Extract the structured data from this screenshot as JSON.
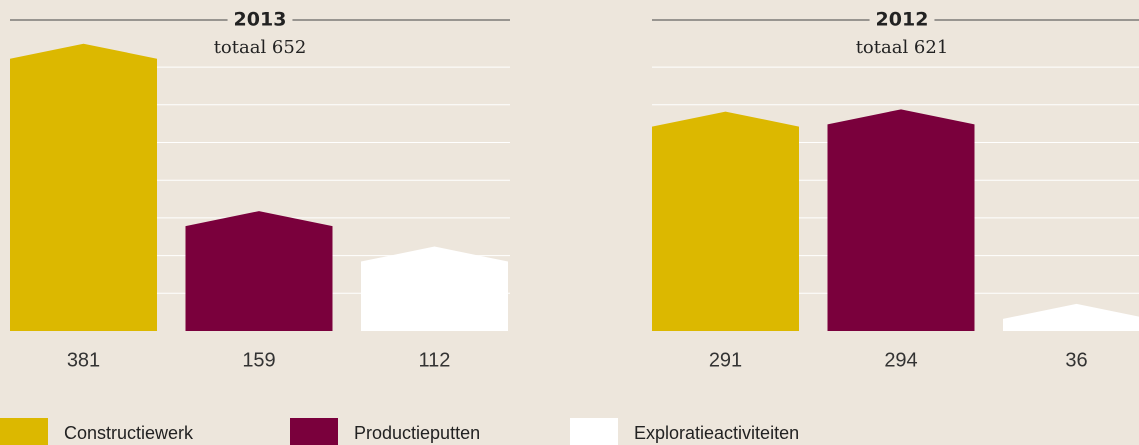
{
  "legend": {
    "items": [
      "Constructiewerk",
      "Productieputten",
      "Exploratieactiviteiten"
    ],
    "colors": [
      "#dcb800",
      "#7a003c",
      "#ffffff"
    ]
  },
  "chart_data": [
    {
      "type": "bar",
      "title": "2013",
      "subtitle": "totaal 652",
      "values": [
        381,
        159,
        112
      ],
      "ylim": [
        0,
        400
      ],
      "yticks": [
        50,
        100,
        150,
        200,
        250,
        300,
        350
      ],
      "grid": true
    },
    {
      "type": "bar",
      "title": "2012",
      "subtitle": "totaal 621",
      "values": [
        291,
        294,
        36
      ],
      "ylim": [
        0,
        400
      ],
      "yticks": [
        50,
        100,
        150,
        200,
        250,
        300,
        350
      ],
      "grid": true
    }
  ]
}
